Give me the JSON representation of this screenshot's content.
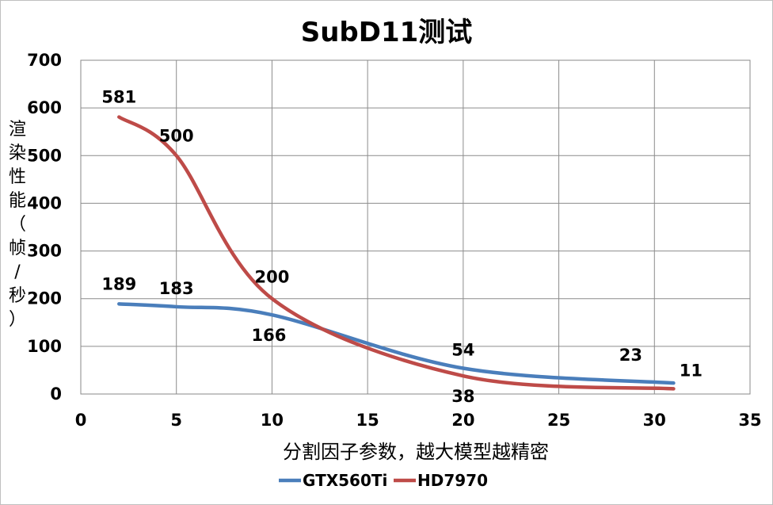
{
  "chart_data": {
    "type": "line",
    "title": "SubD11测试",
    "xlabel": "分割因子参数，越大模型越精密",
    "ylabel": "渲染性能（帧/秒）",
    "xlim": [
      0,
      35
    ],
    "ylim": [
      0,
      700
    ],
    "xticks": [
      0,
      5,
      10,
      15,
      20,
      25,
      30,
      35
    ],
    "yticks": [
      0,
      100,
      200,
      300,
      400,
      500,
      600,
      700
    ],
    "grid": true,
    "legend_position": "bottom",
    "series": [
      {
        "name": "GTX560Ti",
        "color": "#4a7ebb",
        "x": [
          2,
          5,
          10,
          20,
          31
        ],
        "y": [
          189,
          183,
          166,
          54,
          23
        ],
        "labels": [
          "189",
          "183",
          "166",
          "54",
          "23"
        ]
      },
      {
        "name": "HD7970",
        "color": "#be4b48",
        "x": [
          2,
          5,
          10,
          20,
          31
        ],
        "y": [
          581,
          500,
          200,
          38,
          11
        ],
        "labels": [
          "581",
          "500",
          "200",
          "38",
          "11"
        ]
      }
    ]
  }
}
